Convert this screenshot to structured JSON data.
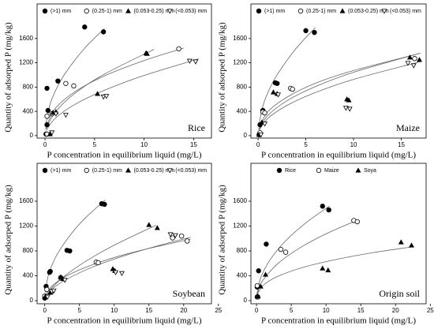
{
  "chart_data": [
    {
      "type": "scatter",
      "title": "Rice",
      "x_label": "P concentration in equilibrium liquid (mg/L)",
      "y_label": "Quantity of adsorped P (mg/kg)",
      "xlim": [
        -0.8,
        16.8
      ],
      "ylim": [
        -40,
        2170
      ],
      "xticks": [
        0,
        5,
        10,
        15
      ],
      "yticks": [
        0,
        400,
        800,
        1200,
        1600
      ],
      "series": [
        {
          "name": "(>1) mm",
          "marker": "circle-filled",
          "color": "#000000",
          "x": [
            0.1,
            0.2,
            0.3,
            0.2,
            1.3,
            4.0,
            5.9
          ],
          "values": [
            25,
            180,
            415,
            780,
            900,
            1790,
            1710
          ],
          "curve_x": [
            0.05,
            0.5,
            1,
            2,
            4,
            6
          ],
          "curve_y": [
            161,
            509,
            720,
            1018,
            1440,
            1764
          ]
        },
        {
          "name": "(0.25-1) mm",
          "marker": "circle-open",
          "color": "#000000",
          "x": [
            0.2,
            0.2,
            0.7,
            2.1,
            2.9,
            13.5
          ],
          "values": [
            25,
            320,
            360,
            860,
            820,
            1430
          ],
          "curve_x": [
            0.05,
            1,
            3,
            6,
            10,
            14
          ],
          "curve_y": [
            114,
            440,
            721,
            985,
            1238,
            1443
          ]
        },
        {
          "name": "(0.053-0.25) mm",
          "marker": "triangle-filled",
          "color": "#000000",
          "x": [
            0.5,
            0.8,
            1.1,
            5.3,
            10.2,
            10.3
          ],
          "values": [
            25,
            380,
            390,
            690,
            1360,
            1350
          ],
          "curve_x": [
            0.1,
            1,
            3,
            6,
            11
          ],
          "curve_y": [
            107,
            380,
            696,
            1014,
            1421
          ]
        },
        {
          "name": "(<0.053) mm",
          "marker": "triangle-down-open",
          "color": "#000000",
          "x": [
            0.7,
            1.1,
            2.1,
            5.9,
            6.2,
            14.6,
            15.2
          ],
          "values": [
            50,
            360,
            340,
            640,
            650,
            1230,
            1220
          ],
          "curve_x": [
            0.1,
            1,
            3,
            6,
            10,
            15.5
          ],
          "curve_y": [
            79,
            280,
            513,
            748,
            992,
            1265
          ]
        }
      ]
    },
    {
      "type": "scatter",
      "title": "Maize",
      "x_label": "P concentration in equilibrium liquid (mg/L)",
      "y_label": "Quantity of adsorped P (mg/kg)",
      "xlim": [
        -0.75,
        17.6
      ],
      "ylim": [
        -40,
        2170
      ],
      "xticks": [
        0,
        5,
        10,
        15
      ],
      "yticks": [
        0,
        400,
        800,
        1200,
        1600
      ],
      "series": [
        {
          "name": "(>1) mm",
          "marker": "circle-filled",
          "color": "#000000",
          "x": [
            0.1,
            0.2,
            0.5,
            1.8,
            2.0,
            5.0,
            5.9
          ],
          "values": [
            15,
            180,
            415,
            870,
            860,
            1730,
            1700
          ],
          "curve_x": [
            0.05,
            0.5,
            1,
            2,
            4,
            6
          ],
          "curve_y": [
            147,
            488,
            700,
            1004,
            1440,
            1780
          ]
        },
        {
          "name": "(0.25-1) mm",
          "marker": "circle-open",
          "color": "#000000",
          "x": [
            0.2,
            0.5,
            0.7,
            3.4,
            3.6,
            16.4
          ],
          "values": [
            50,
            390,
            375,
            780,
            765,
            1270
          ],
          "curve_x": [
            0.05,
            1,
            3,
            6,
            10,
            16.5
          ],
          "curve_y": [
            104,
            390,
            631,
            863,
            1073,
            1338
          ]
        },
        {
          "name": "(0.053-0.25) mm",
          "marker": "triangle-filled",
          "color": "#000000",
          "x": [
            0.1,
            0.4,
            1.6,
            2.0,
            9.3,
            9.5,
            15.9,
            16.9
          ],
          "values": [
            15,
            220,
            715,
            690,
            600,
            585,
            1290,
            1250
          ],
          "curve_x": [
            0.1,
            1,
            3,
            6,
            10,
            17
          ],
          "curve_y": [
            104,
            330,
            572,
            808,
            1044,
            1360
          ]
        },
        {
          "name": "(<0.053) mm",
          "marker": "triangle-down-open",
          "color": "#000000",
          "x": [
            0.3,
            0.7,
            2.1,
            9.2,
            9.6,
            15.7,
            16.3
          ],
          "values": [
            15,
            195,
            675,
            455,
            440,
            1195,
            1155
          ],
          "curve_x": [
            0.1,
            1,
            3,
            6,
            10,
            17
          ],
          "curve_y": [
            84,
            280,
            496,
            710,
            927,
            1220
          ]
        }
      ]
    },
    {
      "type": "scatter",
      "title": "Soybean",
      "x_label": "P concentration in equilibrium liquid (mg/L)",
      "y_label": "Quantity of adsorped P (mg/kg)",
      "xlim": [
        -1.1,
        24
      ],
      "ylim": [
        -50,
        2210
      ],
      "xticks": [
        0,
        5,
        10,
        15,
        20,
        25
      ],
      "yticks": [
        0,
        400,
        800,
        1200,
        1600
      ],
      "series": [
        {
          "name": "(>1) mm",
          "marker": "circle-filled",
          "color": "#000000",
          "x": [
            0,
            0.2,
            0.7,
            0.8,
            3.2,
            3.6,
            8.2,
            8.6
          ],
          "values": [
            40,
            230,
            455,
            470,
            810,
            800,
            1560,
            1550
          ],
          "curve_x": [
            0.05,
            0.5,
            1,
            2,
            4,
            6,
            8.7
          ],
          "curve_y": [
            129,
            400,
            560,
            786,
            1103,
            1347,
            1620
          ]
        },
        {
          "name": "(0.25-1) mm",
          "marker": "circle-open",
          "color": "#000000",
          "x": [
            0,
            0.3,
            1.1,
            2.3,
            7.4,
            7.7,
            18.4,
            19.7,
            20.5
          ],
          "values": [
            75,
            180,
            150,
            370,
            620,
            610,
            1010,
            1040,
            960
          ],
          "curve_x": [
            0.1,
            1,
            3,
            7,
            12,
            17,
            21
          ],
          "curve_y": [
            76,
            230,
            390,
            584,
            757,
            892,
            990
          ]
        },
        {
          "name": "(0.053-0.25) mm",
          "marker": "triangle-filled",
          "color": "#000000",
          "x": [
            0.1,
            0.8,
            2.3,
            2.6,
            9.8,
            10.1,
            15,
            16.2
          ],
          "values": [
            70,
            130,
            380,
            350,
            510,
            480,
            1220,
            1170
          ],
          "curve_x": [
            0.1,
            1,
            3,
            6,
            10,
            16
          ],
          "curve_y": [
            45,
            200,
            408,
            640,
            893,
            1213
          ]
        },
        {
          "name": "(<0.053) mm",
          "marker": "triangle-down-open",
          "color": "#000000",
          "x": [
            0.4,
            1.0,
            1.3,
            2.9,
            10.2,
            11.1,
            18.1,
            18.8
          ],
          "values": [
            60,
            150,
            160,
            330,
            455,
            440,
            1065,
            1050
          ],
          "curve_x": [
            0.1,
            1,
            3,
            7,
            12,
            17,
            21
          ],
          "curve_y": [
            48,
            180,
            335,
            546,
            742,
            905,
            1020
          ]
        }
      ]
    },
    {
      "type": "scatter",
      "title": "Origin soil",
      "x_label": "P concentration in equilibrium liquid (mg/L)",
      "y_label": "Quantity of adsorped P (mg/kg)",
      "xlim": [
        -0.8,
        24.4
      ],
      "ylim": [
        -50,
        2210
      ],
      "xticks": [
        0,
        5,
        10,
        15,
        20,
        25
      ],
      "yticks": [
        0,
        400,
        800,
        1200,
        1600
      ],
      "series": [
        {
          "name": "Rice",
          "marker": "circle-filled",
          "color": "#000000",
          "x": [
            0.1,
            0.1,
            0.3,
            1.4,
            9.5,
            10.4
          ],
          "values": [
            60,
            220,
            480,
            910,
            1520,
            1460
          ],
          "curve_x": [
            0.05,
            0.5,
            1,
            2,
            4,
            7,
            10.5
          ],
          "curve_y": [
            105,
            332,
            470,
            665,
            940,
            1243,
            1523
          ]
        },
        {
          "name": "Maize",
          "marker": "circle-open",
          "color": "#000000",
          "x": [
            0.2,
            0.1,
            3.5,
            4.2,
            14,
            14.5
          ],
          "values": [
            60,
            240,
            825,
            780,
            1290,
            1270
          ],
          "curve_x": [
            0.05,
            0.5,
            1,
            3,
            6,
            10,
            14.5
          ],
          "curve_y": [
            76,
            240,
            340,
            589,
            833,
            1075,
            1295
          ]
        },
        {
          "name": "Soya",
          "marker": "triangle-filled",
          "color": "#000000",
          "x": [
            0.2,
            0.6,
            1.3,
            9.5,
            10.3,
            20.8,
            22.3
          ],
          "values": [
            70,
            230,
            420,
            520,
            490,
            940,
            890
          ],
          "curve_x": [
            0.1,
            1,
            3,
            7,
            12,
            17,
            22.5
          ],
          "curve_y": [
            100,
            250,
            388,
            545,
            675,
            777,
            867
          ]
        }
      ]
    }
  ]
}
